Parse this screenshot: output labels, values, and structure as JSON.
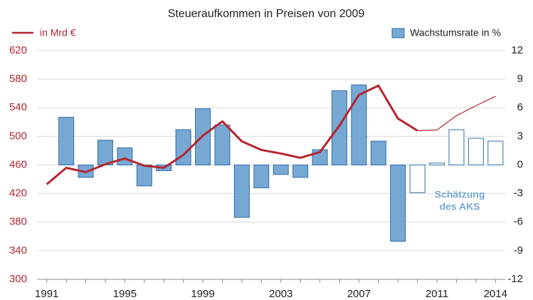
{
  "chart_data": {
    "type": "bar-line",
    "title": "Steueraufkommen in Preisen von 2009",
    "x": [
      1991,
      1992,
      1993,
      1994,
      1995,
      1996,
      1997,
      1998,
      1999,
      2000,
      2001,
      2002,
      2003,
      2004,
      2005,
      2006,
      2007,
      2008,
      2009,
      2010,
      2011,
      2012,
      2013,
      2014
    ],
    "xlim": [
      1990.5,
      2014.5
    ],
    "xticks": [
      1991,
      1995,
      1999,
      2003,
      2007,
      2011,
      2014
    ],
    "ylim": [
      300,
      620
    ],
    "yticks": [
      300,
      340,
      380,
      420,
      460,
      500,
      540,
      580,
      620
    ],
    "y2lim": [
      -12,
      12
    ],
    "y2ticks": [
      -12,
      -9,
      -6,
      -3,
      0,
      3,
      6,
      9,
      12
    ],
    "grid": true,
    "estimate_start": 2010,
    "annotation": [
      "Schätzung",
      "des AKS"
    ],
    "series": [
      {
        "name": "in Mrd €",
        "type": "line",
        "color": "#b5252f",
        "axis": "y",
        "values": [
          433,
          456,
          450,
          461,
          469,
          459,
          456,
          474,
          501,
          521,
          493,
          481,
          476,
          470,
          478,
          515,
          558,
          571,
          525,
          508,
          509,
          529,
          543,
          556
        ]
      },
      {
        "name": "Wachstumsrate in %",
        "type": "bar",
        "color": "#77a8d4",
        "axis": "y2",
        "values": [
          null,
          5.0,
          -1.3,
          2.6,
          1.8,
          -2.2,
          -0.6,
          3.7,
          5.9,
          4.2,
          -5.5,
          -2.4,
          -1.0,
          -1.3,
          1.6,
          7.8,
          8.4,
          2.5,
          -8.0,
          -2.9,
          0.2,
          3.7,
          2.8,
          2.5
        ]
      }
    ]
  }
}
